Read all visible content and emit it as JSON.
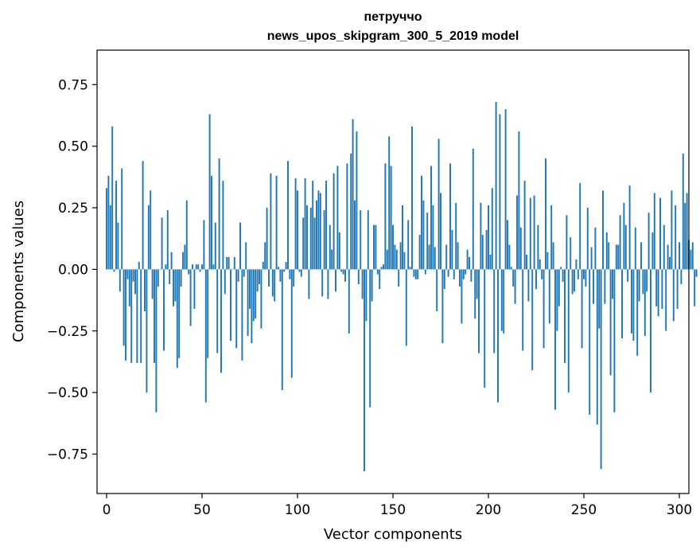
{
  "chart_data": {
    "type": "bar",
    "title": "петруччо",
    "subtitle": "news_upos_skipgram_300_5_2019 model",
    "xlabel": "Vector components",
    "ylabel": "Components values",
    "xlim": [
      -5,
      305
    ],
    "ylim": [
      -0.91,
      0.89
    ],
    "xticks": [
      0,
      50,
      100,
      150,
      200,
      250,
      300
    ],
    "xtick_labels": [
      "0",
      "50",
      "100",
      "150",
      "200",
      "250",
      "300"
    ],
    "yticks": [
      0.75,
      0.5,
      0.25,
      0.0,
      -0.25,
      -0.5,
      -0.75
    ],
    "ytick_labels": [
      "0.75",
      "0.50",
      "0.25",
      "0.00",
      "−0.25",
      "−0.50",
      "−0.75"
    ],
    "grid": false,
    "legend": "none",
    "bar_color": "#1f77b4",
    "x_start": 0,
    "values": [
      0.33,
      0.38,
      0.26,
      0.58,
      -0.01,
      0.36,
      0.19,
      -0.09,
      0.41,
      -0.31,
      -0.37,
      -0.04,
      -0.15,
      -0.38,
      -0.05,
      -0.1,
      -0.38,
      0.03,
      -0.38,
      0.44,
      -0.17,
      -0.5,
      0.26,
      0.32,
      -0.12,
      -0.38,
      -0.58,
      -0.07,
      0.0,
      0.21,
      -0.33,
      0.02,
      0.24,
      -0.06,
      0.07,
      -0.15,
      -0.13,
      -0.4,
      -0.36,
      -0.07,
      0.07,
      0.1,
      0.28,
      -0.02,
      -0.23,
      0.02,
      -0.16,
      0.02,
      0.02,
      -0.01,
      0.02,
      0.2,
      -0.54,
      -0.36,
      0.63,
      0.38,
      0.02,
      0.19,
      -0.34,
      0.45,
      -0.42,
      0.36,
      -0.1,
      0.05,
      0.05,
      -0.29,
      0.0,
      0.05,
      -0.32,
      -0.05,
      0.19,
      -0.37,
      -0.03,
      0.11,
      -0.27,
      -0.16,
      -0.3,
      -0.21,
      -0.2,
      -0.09,
      -0.06,
      -0.24,
      0.03,
      0.11,
      0.25,
      -0.07,
      0.39,
      -0.11,
      -0.13,
      0.38,
      0.01,
      -0.05,
      -0.49,
      -0.01,
      0.03,
      0.44,
      -0.04,
      -0.44,
      -0.07,
      0.37,
      0.32,
      -0.01,
      -0.03,
      0.21,
      0.37,
      0.26,
      -0.12,
      0.25,
      0.36,
      0.21,
      0.28,
      0.32,
      0.31,
      -0.11,
      0.24,
      0.36,
      -0.12,
      0.18,
      0.08,
      0.39,
      -0.09,
      0.42,
      0.15,
      -0.01,
      -0.02,
      -0.05,
      0.43,
      -0.26,
      0.47,
      0.61,
      0.28,
      0.56,
      -0.06,
      0.24,
      -0.12,
      -0.82,
      -0.21,
      0.24,
      -0.56,
      -0.13,
      0.18,
      0.18,
      -0.02,
      -0.08,
      0.01,
      0.02,
      0.43,
      0.08,
      0.54,
      0.42,
      0.18,
      0.1,
      0.08,
      -0.07,
      0.11,
      0.26,
      0.07,
      -0.31,
      0.2,
      0.01,
      0.58,
      -0.03,
      -0.04,
      -0.04,
      0.14,
      0.38,
      0.28,
      -0.02,
      0.23,
      0.1,
      0.42,
      0.26,
      0.09,
      -0.17,
      0.53,
      0.31,
      -0.3,
      -0.08,
      0.1,
      -0.03,
      0.43,
      0.16,
      -0.04,
      0.27,
      0.11,
      -0.07,
      -0.22,
      -0.04,
      -0.02,
      0.08,
      0.05,
      -0.05,
      0.49,
      -0.2,
      -0.12,
      -0.34,
      0.27,
      0.14,
      -0.48,
      0.16,
      0.26,
      0.06,
      0.33,
      -0.34,
      0.68,
      -0.54,
      0.63,
      -0.25,
      -0.26,
      0.65,
      0.2,
      0.1,
      0.01,
      -0.07,
      -0.14,
      0.3,
      0.56,
      0.17,
      -0.33,
      0.36,
      0.06,
      -0.13,
      0.29,
      -0.41,
      0.3,
      -0.08,
      0.18,
      0.04,
      -0.04,
      -0.32,
      0.45,
      0.07,
      -0.22,
      0.26,
      0.11,
      -0.57,
      -0.25,
      -0.15,
      0.01,
      -0.05,
      -0.38,
      0.22,
      -0.5,
      0.13,
      -0.1,
      -0.09,
      0.04,
      -0.04,
      0.35,
      -0.32,
      -0.04,
      -0.07,
      0.25,
      -0.59,
      0.09,
      -0.14,
      0.17,
      -0.63,
      -0.24,
      -0.81,
      0.32,
      -0.14,
      0.15,
      0.11,
      -0.43,
      -0.12,
      -0.58,
      0.1,
      0.1,
      0.22,
      -0.28,
      0.27,
      0.18,
      -0.05,
      0.34,
      -0.26,
      -0.29,
      0.17,
      -0.35,
      -0.13,
      0.11,
      -0.1,
      -0.27,
      -0.09,
      0.23,
      -0.5,
      0.15,
      0.31,
      -0.15,
      -0.19,
      0.29,
      -0.16,
      0.18,
      -0.25,
      0.1,
      0.05,
      0.32,
      -0.21,
      0.26,
      -0.16,
      0.11,
      -0.06,
      0.47,
      0.27,
      0.31,
      0.12,
      0.08,
      0.11,
      -0.15,
      -0.03
    ]
  }
}
